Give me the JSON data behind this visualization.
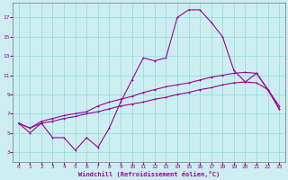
{
  "xlabel": "Windchill (Refroidissement éolien,°C)",
  "background_color": "#cceef0",
  "grid_color": "#99dddd",
  "line_color": "#990099",
  "spine_color": "#777777",
  "x_ticks": [
    0,
    1,
    2,
    3,
    4,
    5,
    6,
    7,
    8,
    9,
    10,
    11,
    12,
    13,
    14,
    15,
    16,
    17,
    18,
    19,
    20,
    21,
    22,
    23
  ],
  "y_ticks": [
    3,
    5,
    7,
    9,
    11,
    13,
    15,
    17
  ],
  "ylim": [
    2.0,
    18.5
  ],
  "xlim": [
    -0.5,
    23.5
  ],
  "line1_y": [
    6.0,
    5.0,
    6.0,
    4.5,
    4.5,
    3.2,
    4.5,
    3.5,
    5.5,
    8.2,
    10.5,
    12.8,
    12.5,
    12.8,
    17.0,
    17.8,
    17.8,
    16.5,
    15.0,
    11.5,
    10.3,
    11.2,
    9.5,
    7.5
  ],
  "line2_y": [
    6.0,
    5.5,
    6.2,
    6.5,
    6.8,
    7.0,
    7.2,
    7.8,
    8.2,
    8.5,
    8.8,
    9.2,
    9.5,
    9.8,
    10.0,
    10.2,
    10.5,
    10.8,
    11.0,
    11.2,
    11.3,
    11.2,
    9.5,
    7.5
  ],
  "line3_y": [
    6.0,
    5.5,
    6.0,
    6.2,
    6.5,
    6.7,
    7.0,
    7.2,
    7.5,
    7.8,
    8.0,
    8.2,
    8.5,
    8.7,
    9.0,
    9.2,
    9.5,
    9.7,
    10.0,
    10.2,
    10.3,
    10.2,
    9.5,
    7.8
  ]
}
